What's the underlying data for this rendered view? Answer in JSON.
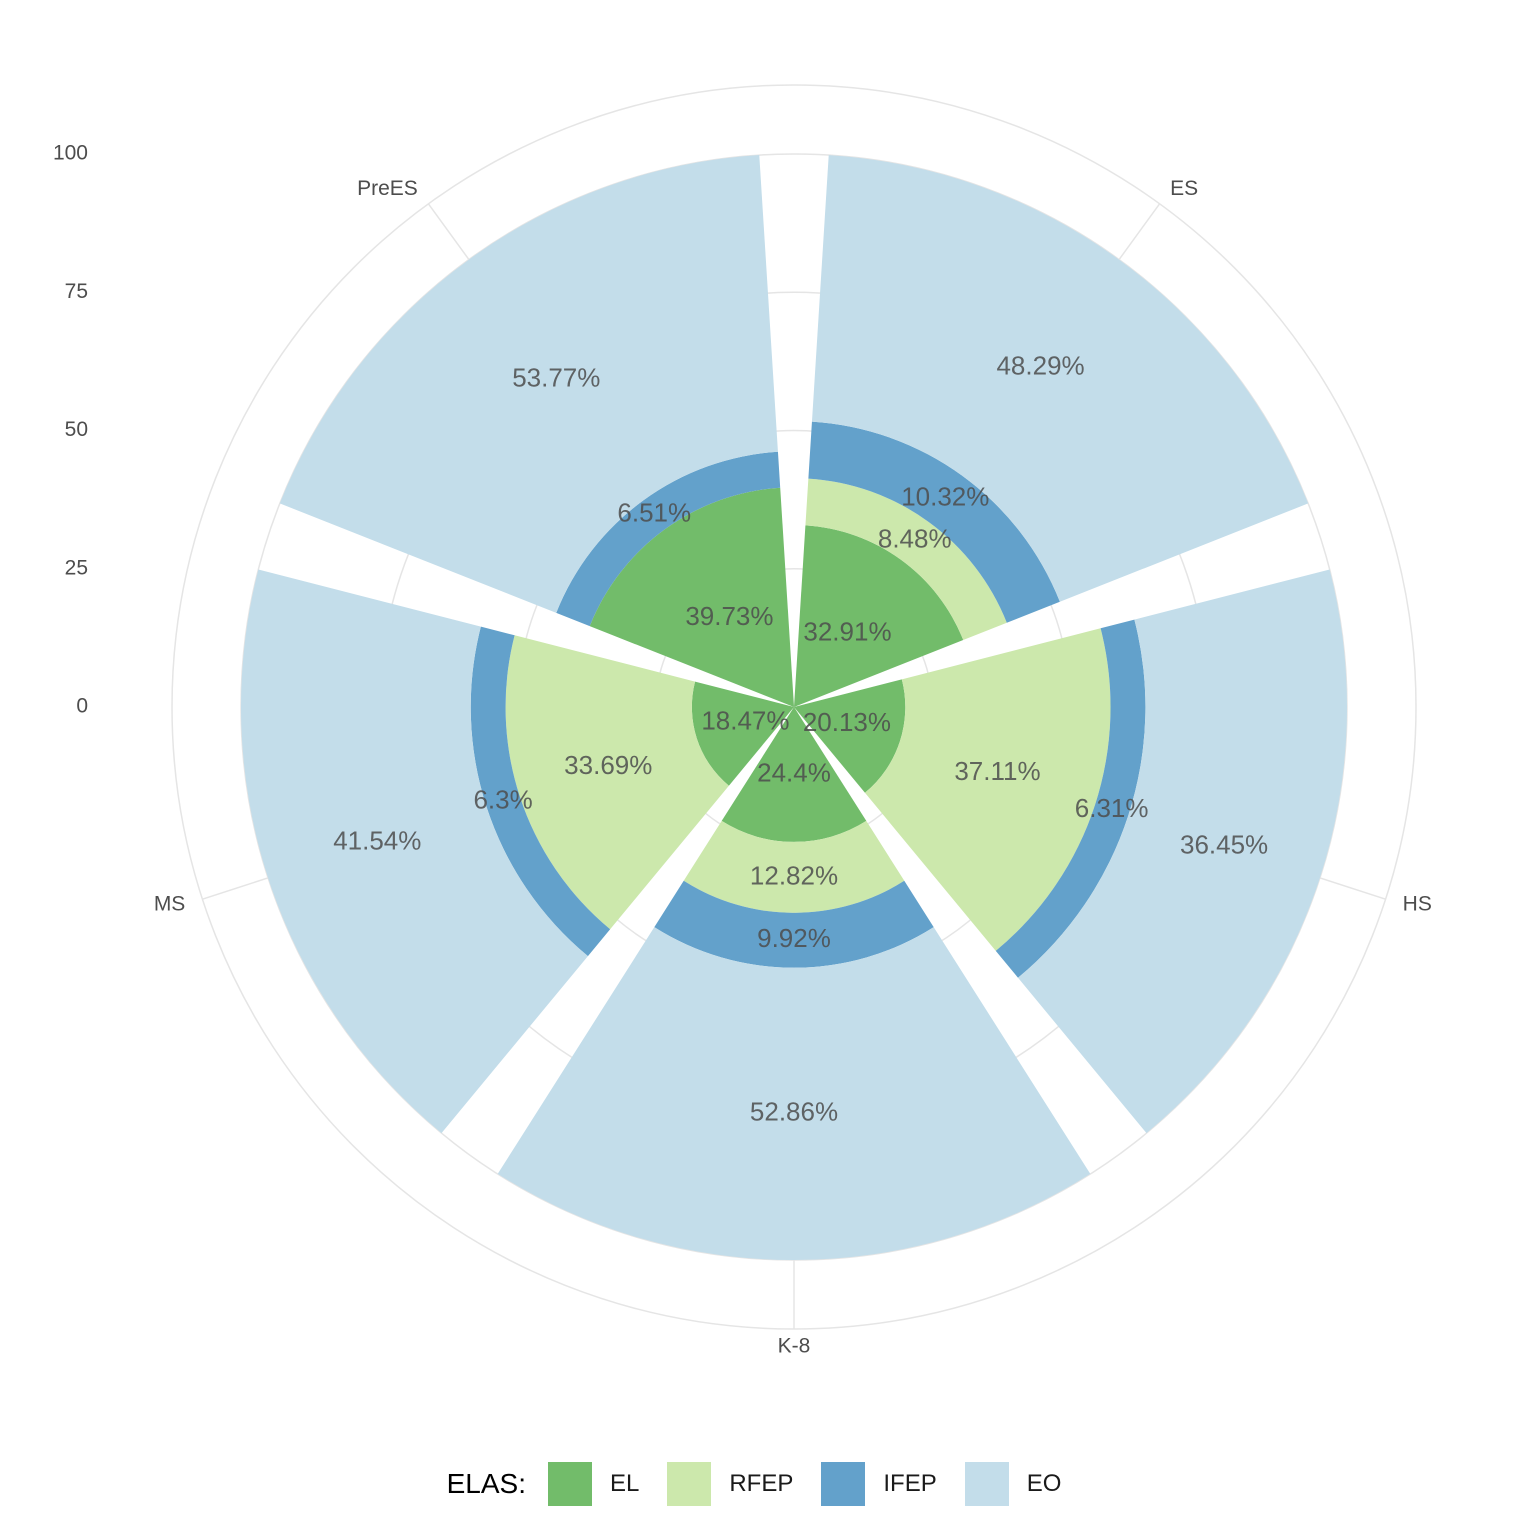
{
  "chart_data": {
    "type": "bar",
    "coord": "polar",
    "categories": [
      "ES",
      "HS",
      "K-8",
      "MS",
      "PreES"
    ],
    "series": [
      {
        "name": "EL",
        "values": [
          32.91,
          20.13,
          24.4,
          18.47,
          39.73
        ]
      },
      {
        "name": "RFEP",
        "values": [
          8.48,
          37.11,
          12.82,
          33.69,
          0
        ]
      },
      {
        "name": "IFEP",
        "values": [
          10.32,
          6.31,
          9.92,
          6.3,
          6.51
        ]
      },
      {
        "name": "EO",
        "values": [
          48.29,
          36.45,
          52.86,
          41.54,
          53.77
        ]
      }
    ],
    "value_labels": [
      [
        "32.91%",
        "20.13%",
        "24.4%",
        "18.47%",
        "39.73%"
      ],
      [
        "8.48%",
        "37.11%",
        "12.82%",
        "33.69%",
        ""
      ],
      [
        "10.32%",
        "6.31%",
        "9.92%",
        "6.3%",
        "6.51%"
      ],
      [
        "48.29%",
        "36.45%",
        "52.86%",
        "41.54%",
        "53.77%"
      ]
    ],
    "radial_ticks": [
      "0",
      "25",
      "50",
      "75",
      "100"
    ],
    "radial_range": [
      0,
      100
    ],
    "stacked": true,
    "grid": true,
    "legend_position": "bottom",
    "colors": {
      "EL": "#72BC6A",
      "RFEP": "#CCE8AC",
      "IFEP": "#63A1CB",
      "EO": "#C3DDEA"
    }
  },
  "legend": {
    "title": "ELAS:",
    "items": [
      {
        "label": "EL",
        "color": "#72BC6A"
      },
      {
        "label": "RFEP",
        "color": "#CCE8AC"
      },
      {
        "label": "IFEP",
        "color": "#63A1CB"
      },
      {
        "label": "EO",
        "color": "#C3DDEA"
      }
    ]
  }
}
